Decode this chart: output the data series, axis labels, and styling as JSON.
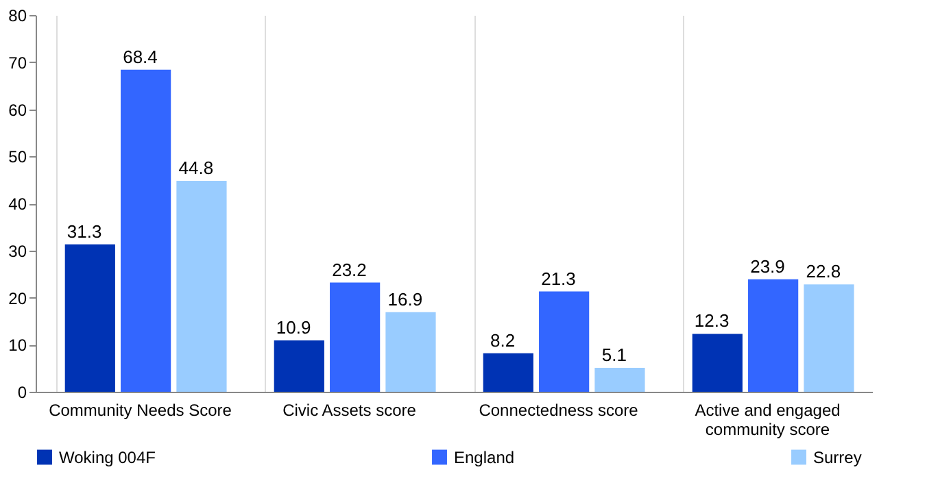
{
  "chart_data": {
    "type": "bar",
    "categories": [
      "Community Needs Score",
      "Civic Assets score",
      "Connectedness score",
      "Active and engaged community score"
    ],
    "series": [
      {
        "name": "Woking 004F",
        "color": "#0033b4",
        "values": [
          31.3,
          10.9,
          8.2,
          12.3
        ]
      },
      {
        "name": "England",
        "color": "#3366ff",
        "values": [
          68.4,
          23.2,
          21.3,
          23.9
        ]
      },
      {
        "name": "Surrey",
        "color": "#99ccff",
        "values": [
          44.8,
          16.9,
          5.1,
          22.8
        ]
      }
    ],
    "ylim": [
      0,
      80
    ],
    "yticks": [
      0,
      10,
      20,
      30,
      40,
      50,
      60,
      70,
      80
    ],
    "grid": "x",
    "legend": "bottom",
    "data_labels": true
  }
}
